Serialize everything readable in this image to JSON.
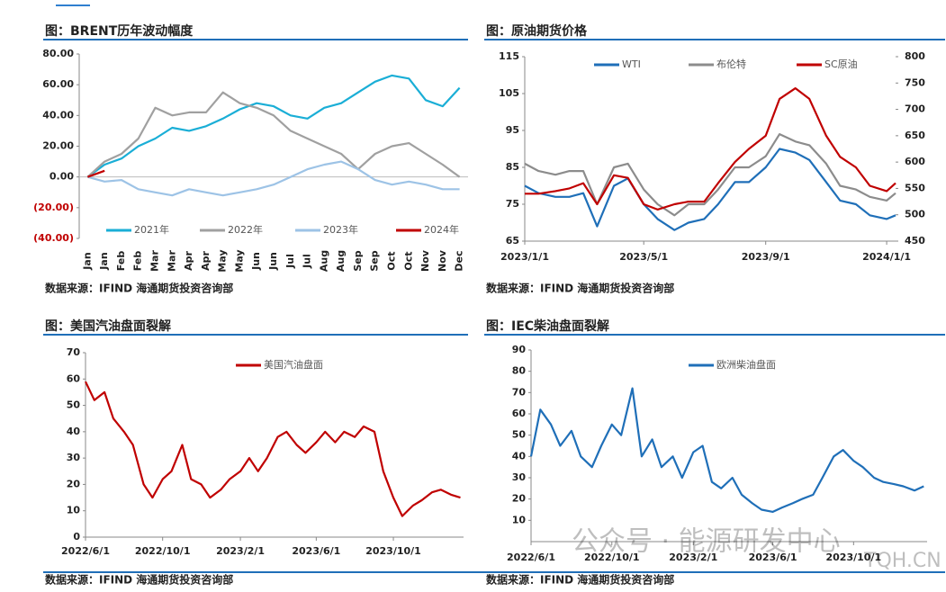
{
  "chart_data": [
    {
      "type": "line",
      "title": "图：BRENT历年波动幅度",
      "source": "数据来源：IFIND 海通期货投资咨询部",
      "categories": [
        "Jan",
        "Jan",
        "Feb",
        "Feb",
        "Mar",
        "Mar",
        "Apr",
        "Apr",
        "May",
        "May",
        "Jun",
        "Jun",
        "Jul",
        "Jul",
        "Aug",
        "Aug",
        "Sep",
        "Sep",
        "Oct",
        "Oct",
        "Nov",
        "Nov",
        "Dec"
      ],
      "series": [
        {
          "name": "2021年",
          "color": "#1aaed6",
          "values": [
            0,
            8,
            12,
            20,
            25,
            32,
            30,
            33,
            38,
            44,
            48,
            46,
            40,
            38,
            45,
            48,
            55,
            62,
            66,
            64,
            50,
            46,
            58
          ]
        },
        {
          "name": "2022年",
          "color": "#a0a0a0",
          "values": [
            0,
            10,
            15,
            25,
            45,
            40,
            42,
            42,
            55,
            48,
            45,
            40,
            30,
            25,
            20,
            15,
            5,
            15,
            20,
            22,
            15,
            8,
            0
          ]
        },
        {
          "name": "2023年",
          "color": "#9dc3e6",
          "values": [
            0,
            -3,
            -2,
            -8,
            -10,
            -12,
            -8,
            -10,
            -12,
            -10,
            -8,
            -5,
            0,
            5,
            8,
            10,
            5,
            -2,
            -5,
            -3,
            -5,
            -8,
            -8
          ]
        },
        {
          "name": "2024年",
          "color": "#c00000",
          "values": [
            0,
            4,
            null,
            null,
            null,
            null,
            null,
            null,
            null,
            null,
            null,
            null,
            null,
            null,
            null,
            null,
            null,
            null,
            null,
            null,
            null,
            null,
            null
          ]
        }
      ],
      "ylim": [
        -40,
        80
      ],
      "yticks": [
        {
          "value": 80,
          "label": "80.00"
        },
        {
          "value": 60,
          "label": "60.00"
        },
        {
          "value": 40,
          "label": "40.00"
        },
        {
          "value": 20,
          "label": "20.00"
        },
        {
          "value": 0,
          "label": "0.00"
        },
        {
          "value": -20,
          "label": "(20.00)"
        },
        {
          "value": -40,
          "label": "(40.00)"
        }
      ],
      "negative_tick_color": "#c00000",
      "zero_line": true
    },
    {
      "type": "line",
      "title": "图：原油期货价格",
      "source": "数据来源：IFIND 海通期货投资咨询部",
      "x": [
        "2023/1/1",
        "2023/1/15",
        "2023/2/1",
        "2023/2/15",
        "2023/3/1",
        "2023/3/15",
        "2023/4/1",
        "2023/4/15",
        "2023/5/1",
        "2023/5/15",
        "2023/6/1",
        "2023/6/15",
        "2023/7/1",
        "2023/7/15",
        "2023/8/1",
        "2023/8/15",
        "2023/9/1",
        "2023/9/15",
        "2023/10/1",
        "2023/10/15",
        "2023/11/1",
        "2023/11/15",
        "2023/12/1",
        "2023/12/15",
        "2024/1/1",
        "2024/1/10"
      ],
      "series": [
        {
          "name": "WTI",
          "color": "#1f6fb8",
          "values": [
            80,
            78,
            77,
            77,
            78,
            69,
            80,
            82,
            75,
            71,
            68,
            70,
            71,
            75,
            81,
            81,
            85,
            90,
            89,
            87,
            81,
            76,
            75,
            72,
            71,
            72
          ]
        },
        {
          "name": "布伦特",
          "color": "#8c8c8c",
          "values": [
            86,
            84,
            83,
            84,
            84,
            75,
            85,
            86,
            79,
            75,
            72,
            75,
            75,
            79,
            85,
            85,
            88,
            94,
            92,
            91,
            86,
            80,
            79,
            77,
            76,
            78
          ]
        },
        {
          "name": "SC原油",
          "color": "#c00000",
          "axis": "y2",
          "values": [
            540,
            540,
            545,
            550,
            560,
            520,
            575,
            570,
            520,
            510,
            520,
            525,
            525,
            560,
            600,
            625,
            650,
            720,
            740,
            720,
            650,
            610,
            590,
            555,
            545,
            560
          ]
        }
      ],
      "xlim": [
        "2023/1/1",
        "2024/1/10"
      ],
      "xticks": [
        "2023/1/1",
        "2023/5/1",
        "2023/9/1",
        "2024/1/1"
      ],
      "ylim": [
        65,
        115
      ],
      "yticks": [
        65,
        75,
        85,
        95,
        105,
        115
      ],
      "y2lim": [
        450,
        800
      ],
      "y2ticks": [
        450,
        500,
        550,
        600,
        650,
        700,
        750,
        800
      ]
    },
    {
      "type": "line",
      "title": "图：美国汽油盘面裂解",
      "source": "数据来源：IFIND 海通期货投资咨询部",
      "x": [
        "2022/6/1",
        "2022/6/15",
        "2022/7/1",
        "2022/7/15",
        "2022/8/1",
        "2022/8/15",
        "2022/9/1",
        "2022/9/15",
        "2022/10/1",
        "2022/10/15",
        "2022/11/1",
        "2022/11/15",
        "2022/12/1",
        "2022/12/15",
        "2023/1/1",
        "2023/1/15",
        "2023/2/1",
        "2023/2/15",
        "2023/3/1",
        "2023/3/15",
        "2023/4/1",
        "2023/4/15",
        "2023/5/1",
        "2023/5/15",
        "2023/6/1",
        "2023/6/15",
        "2023/7/1",
        "2023/7/15",
        "2023/8/1",
        "2023/8/15",
        "2023/9/1",
        "2023/9/15",
        "2023/10/1",
        "2023/10/15",
        "2023/11/1",
        "2023/11/15",
        "2023/12/1",
        "2023/12/15",
        "2024/1/1",
        "2024/1/15"
      ],
      "series": [
        {
          "name": "美国汽油盘面",
          "color": "#c00000",
          "values": [
            59,
            52,
            55,
            45,
            40,
            35,
            20,
            15,
            22,
            25,
            35,
            22,
            20,
            15,
            18,
            22,
            25,
            30,
            25,
            30,
            38,
            40,
            35,
            32,
            36,
            40,
            36,
            40,
            38,
            42,
            40,
            25,
            15,
            8,
            12,
            14,
            17,
            18,
            16,
            15
          ]
        }
      ],
      "xlim": [
        "2022/6/1",
        "2024/1/20"
      ],
      "xticks": [
        "2022/6/1",
        "2022/10/1",
        "2023/2/1",
        "2023/6/1",
        "2023/10/1"
      ],
      "ylim": [
        0,
        70
      ],
      "yticks": [
        0,
        10,
        20,
        30,
        40,
        50,
        60,
        70
      ]
    },
    {
      "type": "line",
      "title": "图：IEC柴油盘面裂解",
      "source": "数据来源：IFIND 海通期货投资咨询部",
      "x": [
        "2022/6/1",
        "2022/6/15",
        "2022/7/1",
        "2022/7/15",
        "2022/8/1",
        "2022/8/15",
        "2022/9/1",
        "2022/9/15",
        "2022/10/1",
        "2022/10/15",
        "2022/11/1",
        "2022/11/15",
        "2022/12/1",
        "2022/12/15",
        "2023/1/1",
        "2023/1/15",
        "2023/2/1",
        "2023/2/15",
        "2023/3/1",
        "2023/3/15",
        "2023/4/1",
        "2023/4/15",
        "2023/5/1",
        "2023/5/15",
        "2023/6/1",
        "2023/6/15",
        "2023/7/1",
        "2023/7/15",
        "2023/8/1",
        "2023/8/15",
        "2023/9/1",
        "2023/9/15",
        "2023/10/1",
        "2023/10/15",
        "2023/11/1",
        "2023/11/15",
        "2023/12/1",
        "2023/12/15",
        "2024/1/1",
        "2024/1/15"
      ],
      "series": [
        {
          "name": "欧洲柴油盘面",
          "color": "#1f6fb8",
          "values": [
            40,
            62,
            55,
            45,
            52,
            40,
            35,
            45,
            55,
            50,
            72,
            40,
            48,
            35,
            40,
            30,
            42,
            45,
            28,
            25,
            30,
            22,
            18,
            15,
            14,
            16,
            18,
            20,
            22,
            30,
            40,
            43,
            38,
            35,
            30,
            28,
            27,
            26,
            24,
            26
          ]
        }
      ],
      "xlim": [
        "2022/6/1",
        "2024/1/20"
      ],
      "xticks": [
        "2022/6/1",
        "2022/10/1",
        "2023/2/1",
        "2023/6/1",
        "2023/10/1"
      ],
      "ylim": [
        0,
        90
      ],
      "yticks": [
        10,
        20,
        30,
        40,
        50,
        60,
        70,
        80,
        90
      ]
    }
  ],
  "watermark": {
    "text": "公众号 · 能源研发中心",
    "site": "TQH.CN"
  }
}
